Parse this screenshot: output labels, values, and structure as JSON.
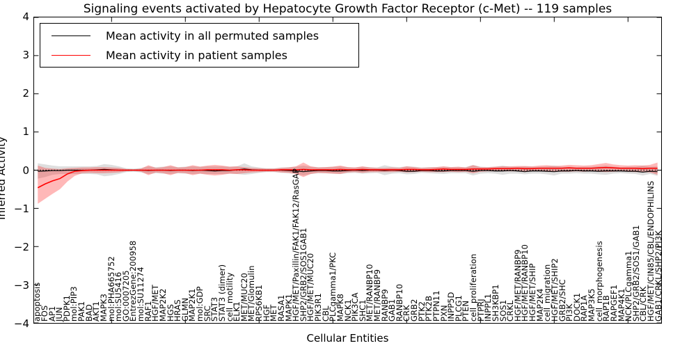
{
  "title": "Signaling events activated by Hepatocyte Growth Factor Receptor (c-Met) -- 119 samples",
  "legend": [
    {
      "label": "Mean activity in all permuted samples",
      "color": "#000000"
    },
    {
      "label": "Mean activity in patient samples",
      "color": "#ff0000"
    }
  ],
  "axes": {
    "ylabel": "Inferred Activity",
    "xlabel": "Cellular Entities",
    "yticks": [
      "4",
      "3",
      "2",
      "1",
      "0",
      "−1",
      "−2",
      "−3",
      "−4"
    ],
    "ylim": [
      -4,
      4
    ]
  },
  "chart_data": {
    "type": "line",
    "title": "Signaling events activated by Hepatocyte Growth Factor Receptor (c-Met) -- 119 samples",
    "xlabel": "Cellular Entities",
    "ylabel": "Inferred Activity",
    "ylim": [
      -4,
      4
    ],
    "grid": false,
    "legend_position": "upper left",
    "zero_line": {
      "y": 0,
      "style": "dotted",
      "color": "#000000"
    },
    "categories": [
      "apoptosis",
      "FOS",
      "AP1",
      "JUN",
      "PDPK1",
      "mol:PIP3",
      "PAK1",
      "BAD",
      "AKT1",
      "MAPK3",
      "mol:PHA665752",
      "mol:SU5416",
      "GO:0007205",
      "EntrezGene:200958",
      "mol:SU11274",
      "RAF1",
      "HGF/MET",
      "MAP2K2",
      "HGS",
      "HRAS",
      "GLMN",
      "MAP2K1",
      "mol:GDP",
      "SRC",
      "STAT3",
      "STAT3 (dimer)",
      "cell_motility",
      "ELK1",
      "MET/MUC20",
      "MET/Glomulin",
      "RPS6KB1",
      "HGF",
      "MET",
      "RASA1",
      "MAPK1",
      "HGF/MET/Paxillin/FAK1/FAK12/RasGAP",
      "SHP2/GRB2/SOS1GAB1",
      "HGF/MET/MUC20",
      "PIK3R1",
      "CBL",
      "PLCgamma1/PKC",
      "MAPK8",
      "NCK1",
      "PIK3CA",
      "SHC1",
      "MET/RANBP10",
      "MET/RANBP9",
      "RANBP9",
      "GAB1",
      "RANBP10",
      "CRK",
      "GRB2",
      "PTK2",
      "PTK2B",
      "PTPN11",
      "PXN",
      "INPP5D",
      "PLCG1",
      "PTEN",
      "cell_proliferation",
      "PTPRJ",
      "INPPL1",
      "SH3KBP1",
      "SOS1",
      "CRKL",
      "HGF/MET/RANBP9",
      "HGF/MET/RANBP10",
      "HGF/MET/SHIP",
      "MAP2K4",
      "cell_migration",
      "HGF/MET/SHIP2",
      "GRB2/SHC",
      "PI3K",
      "DOCK1",
      "RAP1A",
      "MAP3K5",
      "cell_morphogenesis",
      "RAP1B",
      "RAPGEF1",
      "MAP4K1",
      "NCK/PLCgamma1",
      "SHP2/GRB2/SOS1/GAB1",
      "CBL/CRK",
      "HGF/MET/CIN85/CBL/ENDOPHILINS",
      "GAB1/CRKL/SHP2/PI3K"
    ],
    "series": [
      {
        "name": "Mean activity in all permuted samples",
        "color": "#000000",
        "values": [
          -0.03,
          -0.02,
          -0.01,
          -0.01,
          0,
          0,
          0,
          0,
          0.01,
          0.02,
          0.01,
          0,
          0,
          0,
          0,
          -0.01,
          0,
          0,
          -0.01,
          0,
          0,
          -0.01,
          0,
          -0.01,
          -0.02,
          -0.01,
          -0.01,
          0.01,
          0.03,
          0.01,
          0,
          0,
          0,
          0,
          -0.01,
          -0.02,
          -0.04,
          -0.02,
          -0.01,
          -0.01,
          -0.02,
          -0.02,
          -0.01,
          0,
          -0.01,
          0,
          0,
          -0.01,
          0,
          -0.01,
          -0.03,
          -0.03,
          -0.01,
          -0.01,
          -0.02,
          -0.02,
          -0.01,
          -0.01,
          -0.01,
          -0.03,
          -0.01,
          -0.01,
          -0.02,
          -0.02,
          -0.01,
          -0.02,
          -0.04,
          -0.02,
          -0.02,
          -0.03,
          -0.04,
          -0.02,
          -0.02,
          -0.01,
          -0.02,
          -0.02,
          -0.03,
          -0.02,
          -0.02,
          -0.02,
          -0.03,
          -0.03,
          -0.05,
          -0.03,
          -0.04
        ]
      },
      {
        "name": "Mean activity in patient samples",
        "color": "#ff0000",
        "values": [
          -0.46,
          -0.36,
          -0.28,
          -0.22,
          -0.1,
          -0.03,
          -0.01,
          0,
          0,
          0,
          0,
          0,
          0,
          0,
          0,
          0,
          0,
          0,
          0,
          0,
          0,
          0,
          0,
          0.01,
          0.01,
          0.01,
          0,
          0.01,
          0.01,
          0,
          0,
          0,
          0,
          0.01,
          0.01,
          0.01,
          0.02,
          0.01,
          0.01,
          0.01,
          0.01,
          0.02,
          0.01,
          0.01,
          0.02,
          0.01,
          0.01,
          0.01,
          0.01,
          0.01,
          0.02,
          0.02,
          0.01,
          0.01,
          0.02,
          0.03,
          0.02,
          0.02,
          0.02,
          0.03,
          0.03,
          0.03,
          0.04,
          0.04,
          0.04,
          0.05,
          0.04,
          0.04,
          0.05,
          0.05,
          0.05,
          0.05,
          0.06,
          0.05,
          0.05,
          0.05,
          0.06,
          0.07,
          0.06,
          0.05,
          0.05,
          0.05,
          0.04,
          0.05,
          0.05
        ]
      }
    ],
    "bands": [
      {
        "name": "permuted-std-band",
        "color": "rgba(0,0,0,0.13)",
        "upper": [
          0.18,
          0.15,
          0.12,
          0.1,
          0.1,
          0.1,
          0.1,
          0.1,
          0.11,
          0.16,
          0.14,
          0.1,
          0.05,
          0.04,
          0.06,
          0.1,
          0.08,
          0.09,
          0.1,
          0.08,
          0.09,
          0.1,
          0.09,
          0.1,
          0.1,
          0.1,
          0.09,
          0.1,
          0.18,
          0.1,
          0.07,
          0.05,
          0.05,
          0.07,
          0.08,
          0.09,
          0.12,
          0.09,
          0.08,
          0.08,
          0.09,
          0.1,
          0.08,
          0.07,
          0.09,
          0.08,
          0.07,
          0.13,
          0.09,
          0.08,
          0.1,
          0.09,
          0.07,
          0.08,
          0.08,
          0.09,
          0.08,
          0.08,
          0.08,
          0.14,
          0.09,
          0.08,
          0.09,
          0.12,
          0.09,
          0.09,
          0.1,
          0.09,
          0.09,
          0.1,
          0.12,
          0.09,
          0.09,
          0.08,
          0.09,
          0.09,
          0.1,
          0.12,
          0.09,
          0.08,
          0.09,
          0.09,
          0.12,
          0.09,
          0.1
        ],
        "lower": [
          -0.22,
          -0.18,
          -0.12,
          -0.1,
          -0.1,
          -0.1,
          -0.1,
          -0.1,
          -0.11,
          -0.16,
          -0.14,
          -0.1,
          -0.05,
          -0.04,
          -0.06,
          -0.1,
          -0.08,
          -0.09,
          -0.1,
          -0.08,
          -0.09,
          -0.1,
          -0.09,
          -0.1,
          -0.1,
          -0.1,
          -0.09,
          -0.1,
          -0.12,
          -0.1,
          -0.07,
          -0.05,
          -0.05,
          -0.07,
          -0.08,
          -0.1,
          -0.14,
          -0.1,
          -0.08,
          -0.08,
          -0.09,
          -0.1,
          -0.08,
          -0.07,
          -0.09,
          -0.08,
          -0.07,
          -0.13,
          -0.09,
          -0.08,
          -0.11,
          -0.1,
          -0.07,
          -0.08,
          -0.09,
          -0.1,
          -0.08,
          -0.08,
          -0.08,
          -0.14,
          -0.09,
          -0.08,
          -0.09,
          -0.12,
          -0.09,
          -0.09,
          -0.11,
          -0.09,
          -0.09,
          -0.11,
          -0.14,
          -0.09,
          -0.09,
          -0.08,
          -0.09,
          -0.09,
          -0.11,
          -0.12,
          -0.09,
          -0.08,
          -0.09,
          -0.1,
          -0.14,
          -0.1,
          -0.15
        ]
      },
      {
        "name": "patient-std-band",
        "color": "rgba(255,0,0,0.28)",
        "upper": [
          0.12,
          0.06,
          0.04,
          0.03,
          0.05,
          0.06,
          0.07,
          0.07,
          0.08,
          0.08,
          0.07,
          0.06,
          0.03,
          0.02,
          0.04,
          0.13,
          0.06,
          0.08,
          0.13,
          0.07,
          0.08,
          0.13,
          0.09,
          0.12,
          0.14,
          0.12,
          0.09,
          0.1,
          0.08,
          0.06,
          0.05,
          0.04,
          0.04,
          0.06,
          0.07,
          0.1,
          0.2,
          0.1,
          0.07,
          0.08,
          0.09,
          0.12,
          0.08,
          0.07,
          0.1,
          0.07,
          0.06,
          0.06,
          0.07,
          0.06,
          0.1,
          0.08,
          0.06,
          0.07,
          0.08,
          0.1,
          0.08,
          0.09,
          0.07,
          0.13,
          0.08,
          0.08,
          0.09,
          0.1,
          0.1,
          0.11,
          0.11,
          0.1,
          0.12,
          0.13,
          0.11,
          0.12,
          0.14,
          0.13,
          0.12,
          0.13,
          0.16,
          0.19,
          0.15,
          0.13,
          0.12,
          0.13,
          0.12,
          0.14,
          0.2
        ],
        "lower": [
          -0.88,
          -0.75,
          -0.62,
          -0.5,
          -0.3,
          -0.15,
          -0.08,
          -0.07,
          -0.08,
          -0.08,
          -0.07,
          -0.06,
          -0.03,
          -0.02,
          -0.04,
          -0.13,
          -0.06,
          -0.08,
          -0.13,
          -0.07,
          -0.08,
          -0.13,
          -0.09,
          -0.12,
          -0.14,
          -0.12,
          -0.09,
          -0.1,
          -0.08,
          -0.06,
          -0.05,
          -0.04,
          -0.04,
          -0.06,
          -0.07,
          -0.1,
          -0.18,
          -0.1,
          -0.07,
          -0.08,
          -0.09,
          -0.1,
          -0.06,
          -0.05,
          -0.07,
          -0.05,
          -0.05,
          -0.05,
          -0.05,
          -0.04,
          -0.06,
          -0.05,
          -0.04,
          -0.05,
          -0.05,
          -0.05,
          -0.04,
          -0.05,
          -0.04,
          -0.08,
          -0.04,
          -0.03,
          -0.03,
          -0.03,
          -0.03,
          -0.03,
          -0.04,
          -0.03,
          -0.03,
          -0.04,
          -0.03,
          -0.04,
          -0.04,
          -0.03,
          -0.04,
          -0.03,
          -0.04,
          -0.05,
          -0.04,
          -0.03,
          -0.04,
          -0.05,
          -0.05,
          -0.06,
          -0.12
        ]
      }
    ]
  }
}
